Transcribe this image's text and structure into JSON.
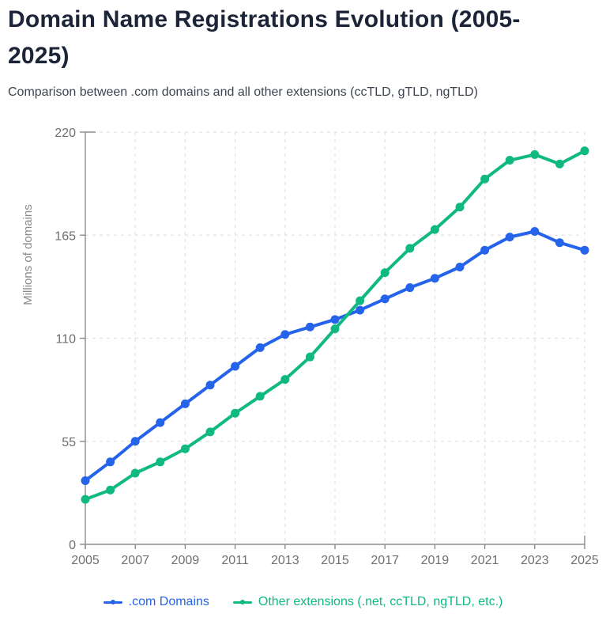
{
  "chart_data": {
    "type": "line",
    "title": "Domain Name Registrations Evolution (2005-2025)",
    "subtitle": "Comparison between .com domains and all other extensions (ccTLD, gTLD, ngTLD)",
    "x": [
      2005,
      2006,
      2007,
      2008,
      2009,
      2010,
      2011,
      2012,
      2013,
      2014,
      2015,
      2016,
      2017,
      2018,
      2019,
      2020,
      2021,
      2022,
      2023,
      2024,
      2025
    ],
    "series": [
      {
        "name": ".com Domains",
        "color": "#2563eb",
        "values": [
          34,
          44,
          55,
          65,
          75,
          85,
          95,
          105,
          112,
          116,
          120,
          125,
          131,
          137,
          142,
          148,
          157,
          164,
          167,
          161,
          157
        ]
      },
      {
        "name": "Other extensions (.net, ccTLD, ngTLD, etc.)",
        "color": "#10b981",
        "values": [
          24,
          29,
          38,
          44,
          51,
          60,
          70,
          79,
          88,
          100,
          115,
          130,
          145,
          158,
          168,
          180,
          195,
          205,
          208,
          203,
          210
        ]
      }
    ],
    "xlabel": "",
    "ylabel": "Millions of domains",
    "ylim": [
      0,
      220
    ],
    "yticks": [
      0,
      55,
      110,
      165,
      220
    ],
    "ytick_labels": [
      "0",
      "55",
      "110",
      "165",
      "220"
    ],
    "xticks": [
      2005,
      2007,
      2009,
      2011,
      2013,
      2015,
      2017,
      2019,
      2021,
      2023,
      2025
    ],
    "xtick_labels": [
      "2005",
      "2007",
      "2009",
      "2011",
      "2013",
      "2015",
      "2017",
      "2019",
      "2021",
      "2023",
      "2025"
    ],
    "grid": "dashed",
    "legend_position": "bottom",
    "colors": {
      "grid": "#e2e2e2",
      "axis": "#8c8c8c",
      "tick_label": "#6f6f6f",
      "axis_title": "#8a8a8a",
      "title": "#1b2537",
      "subtitle": "#3d4450",
      "background": "#ffffff"
    }
  }
}
